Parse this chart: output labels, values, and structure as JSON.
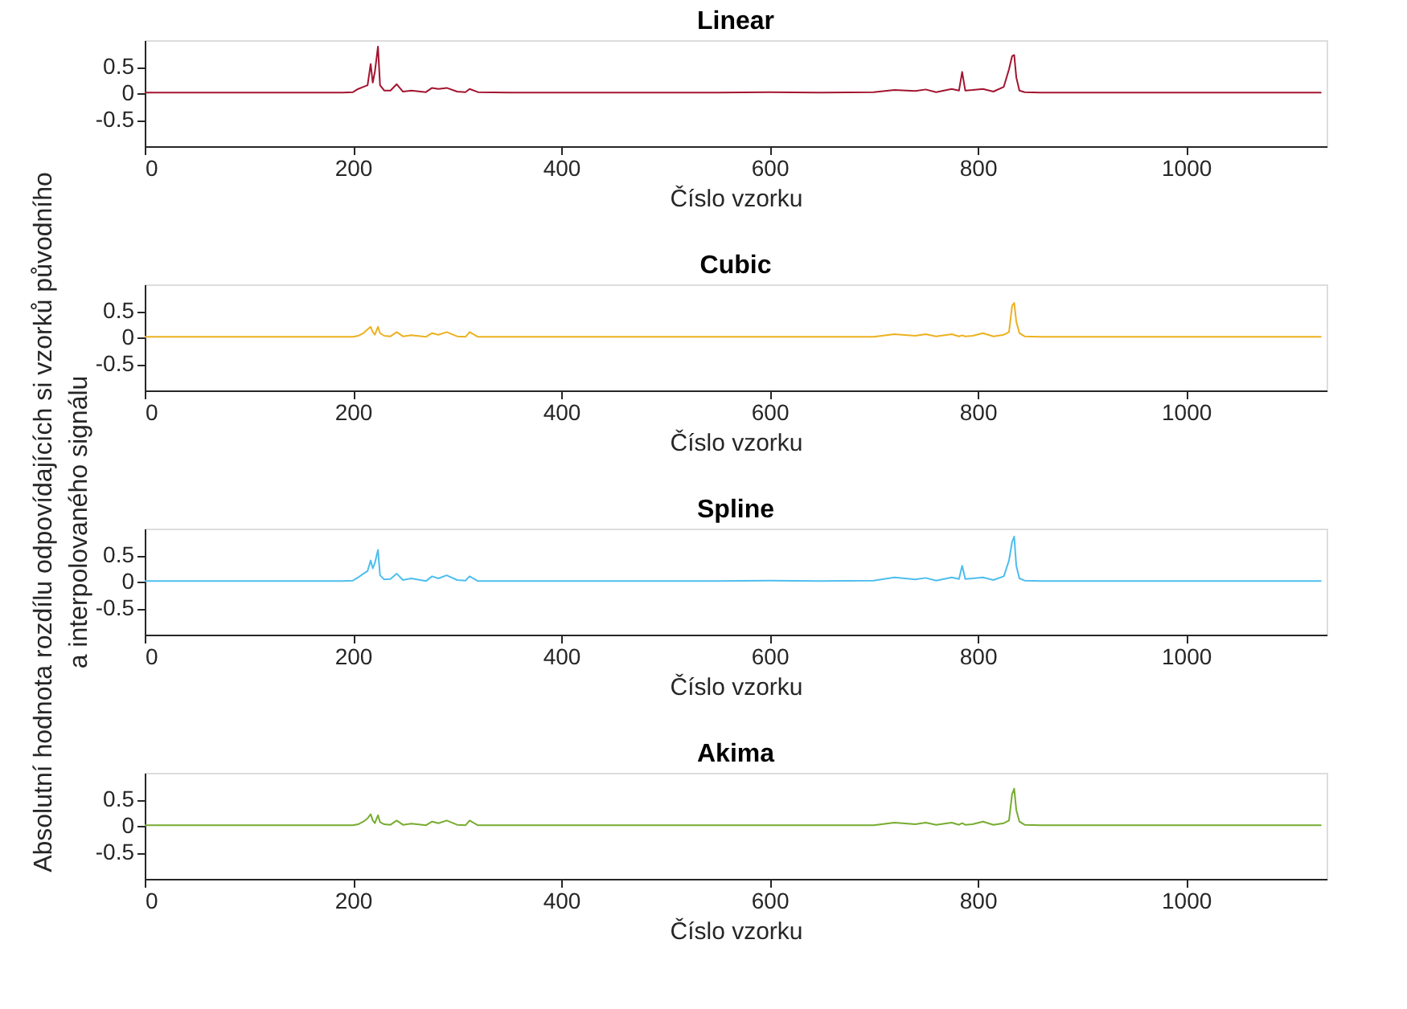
{
  "chart_data": [
    {
      "type": "line",
      "title": "Linear",
      "xlabel": "Číslo vzorku",
      "ylabel": "Absolutní hodnota rozdílu odpovídajících si vzorků původního\na interpolovaného signálu",
      "xlim": [
        0,
        1135
      ],
      "xticks": [
        0,
        200,
        400,
        600,
        800,
        1000
      ],
      "ylim": [
        -1,
        1
      ],
      "yticks": [
        -0.5,
        0,
        0.5
      ],
      "grid": false,
      "x": [
        0,
        20,
        50,
        80,
        120,
        160,
        190,
        200,
        205,
        210,
        214,
        217,
        219,
        221,
        224,
        226,
        230,
        236,
        242,
        248,
        256,
        270,
        276,
        282,
        290,
        300,
        308,
        312,
        320,
        350,
        400,
        450,
        500,
        550,
        600,
        650,
        700,
        720,
        740,
        750,
        760,
        775,
        782,
        785,
        788,
        795,
        805,
        815,
        825,
        830,
        833,
        835,
        837,
        840,
        845,
        860,
        900,
        950,
        1000,
        1050,
        1100,
        1130
      ],
      "series": [
        {
          "color": "#a2142f",
          "values": [
            0.01,
            0.01,
            0.01,
            0.01,
            0.01,
            0.01,
            0.01,
            0.02,
            0.08,
            0.12,
            0.15,
            0.55,
            0.2,
            0.4,
            0.88,
            0.15,
            0.05,
            0.05,
            0.17,
            0.03,
            0.05,
            0.02,
            0.1,
            0.08,
            0.1,
            0.03,
            0.02,
            0.08,
            0.02,
            0.01,
            0.01,
            0.01,
            0.01,
            0.01,
            0.02,
            0.01,
            0.02,
            0.06,
            0.04,
            0.07,
            0.02,
            0.08,
            0.05,
            0.4,
            0.05,
            0.06,
            0.08,
            0.03,
            0.12,
            0.45,
            0.7,
            0.72,
            0.3,
            0.05,
            0.02,
            0.01,
            0.01,
            0.01,
            0.01,
            0.01,
            0.01,
            0.01
          ]
        }
      ]
    },
    {
      "type": "line",
      "title": "Cubic",
      "xlabel": "Číslo vzorku",
      "xlim": [
        0,
        1135
      ],
      "xticks": [
        0,
        200,
        400,
        600,
        800,
        1000
      ],
      "ylim": [
        -1,
        1
      ],
      "yticks": [
        -0.5,
        0,
        0.5
      ],
      "grid": false,
      "x": [
        0,
        20,
        50,
        80,
        120,
        160,
        190,
        200,
        205,
        210,
        214,
        217,
        219,
        221,
        224,
        226,
        230,
        236,
        242,
        248,
        256,
        270,
        276,
        282,
        290,
        300,
        308,
        312,
        320,
        350,
        400,
        450,
        500,
        550,
        600,
        650,
        700,
        720,
        740,
        750,
        760,
        775,
        782,
        785,
        788,
        795,
        805,
        815,
        825,
        830,
        833,
        835,
        837,
        840,
        845,
        860,
        900,
        950,
        1000,
        1050,
        1100,
        1130
      ],
      "series": [
        {
          "color": "#edb120",
          "values": [
            0.01,
            0.01,
            0.01,
            0.01,
            0.01,
            0.01,
            0.01,
            0.01,
            0.03,
            0.08,
            0.15,
            0.2,
            0.1,
            0.05,
            0.2,
            0.08,
            0.03,
            0.02,
            0.1,
            0.02,
            0.04,
            0.01,
            0.08,
            0.05,
            0.1,
            0.02,
            0.01,
            0.1,
            0.01,
            0.01,
            0.01,
            0.01,
            0.01,
            0.01,
            0.01,
            0.01,
            0.01,
            0.06,
            0.03,
            0.06,
            0.02,
            0.06,
            0.02,
            0.04,
            0.02,
            0.03,
            0.08,
            0.02,
            0.05,
            0.1,
            0.6,
            0.65,
            0.3,
            0.08,
            0.02,
            0.01,
            0.01,
            0.01,
            0.01,
            0.01,
            0.01,
            0.01
          ]
        }
      ]
    },
    {
      "type": "line",
      "title": "Spline",
      "xlabel": "Číslo vzorku",
      "xlim": [
        0,
        1135
      ],
      "xticks": [
        0,
        200,
        400,
        600,
        800,
        1000
      ],
      "ylim": [
        -1,
        1
      ],
      "yticks": [
        -0.5,
        0,
        0.5
      ],
      "grid": false,
      "x": [
        0,
        20,
        50,
        80,
        120,
        160,
        190,
        200,
        205,
        210,
        214,
        217,
        219,
        221,
        224,
        226,
        230,
        236,
        242,
        248,
        256,
        270,
        276,
        282,
        290,
        300,
        308,
        312,
        320,
        350,
        400,
        450,
        500,
        550,
        600,
        650,
        700,
        720,
        740,
        750,
        760,
        775,
        782,
        785,
        788,
        795,
        805,
        815,
        825,
        830,
        833,
        835,
        837,
        840,
        845,
        860,
        900,
        950,
        1000,
        1050,
        1100,
        1130
      ],
      "series": [
        {
          "color": "#4dbeee",
          "values": [
            0.01,
            0.01,
            0.01,
            0.01,
            0.01,
            0.01,
            0.01,
            0.02,
            0.08,
            0.15,
            0.2,
            0.4,
            0.25,
            0.35,
            0.6,
            0.12,
            0.04,
            0.05,
            0.15,
            0.03,
            0.06,
            0.01,
            0.1,
            0.06,
            0.12,
            0.03,
            0.02,
            0.1,
            0.01,
            0.01,
            0.01,
            0.01,
            0.01,
            0.01,
            0.02,
            0.01,
            0.02,
            0.08,
            0.04,
            0.07,
            0.02,
            0.08,
            0.05,
            0.3,
            0.05,
            0.06,
            0.08,
            0.03,
            0.1,
            0.4,
            0.75,
            0.85,
            0.3,
            0.06,
            0.02,
            0.01,
            0.01,
            0.01,
            0.01,
            0.01,
            0.01,
            0.01
          ]
        }
      ]
    },
    {
      "type": "line",
      "title": "Akima",
      "xlabel": "Číslo vzorku",
      "xlim": [
        0,
        1135
      ],
      "xticks": [
        0,
        200,
        400,
        600,
        800,
        1000
      ],
      "ylim": [
        -1,
        1
      ],
      "yticks": [
        -0.5,
        0,
        0.5
      ],
      "grid": false,
      "x": [
        0,
        20,
        50,
        80,
        120,
        160,
        190,
        200,
        205,
        210,
        214,
        217,
        219,
        221,
        224,
        226,
        230,
        236,
        242,
        248,
        256,
        270,
        276,
        282,
        290,
        300,
        308,
        312,
        320,
        350,
        400,
        450,
        500,
        550,
        600,
        650,
        700,
        720,
        740,
        750,
        760,
        775,
        782,
        785,
        788,
        795,
        805,
        815,
        825,
        830,
        833,
        835,
        837,
        840,
        845,
        860,
        900,
        950,
        1000,
        1050,
        1100,
        1130
      ],
      "series": [
        {
          "color": "#77ac30",
          "values": [
            0.01,
            0.01,
            0.01,
            0.01,
            0.01,
            0.01,
            0.01,
            0.01,
            0.03,
            0.08,
            0.14,
            0.22,
            0.1,
            0.05,
            0.2,
            0.07,
            0.03,
            0.02,
            0.1,
            0.02,
            0.04,
            0.01,
            0.08,
            0.05,
            0.1,
            0.02,
            0.01,
            0.1,
            0.01,
            0.01,
            0.01,
            0.01,
            0.01,
            0.01,
            0.01,
            0.01,
            0.01,
            0.06,
            0.03,
            0.06,
            0.02,
            0.06,
            0.02,
            0.05,
            0.02,
            0.03,
            0.08,
            0.02,
            0.05,
            0.1,
            0.6,
            0.7,
            0.3,
            0.08,
            0.02,
            0.01,
            0.01,
            0.01,
            0.01,
            0.01,
            0.01,
            0.01
          ]
        }
      ]
    }
  ]
}
